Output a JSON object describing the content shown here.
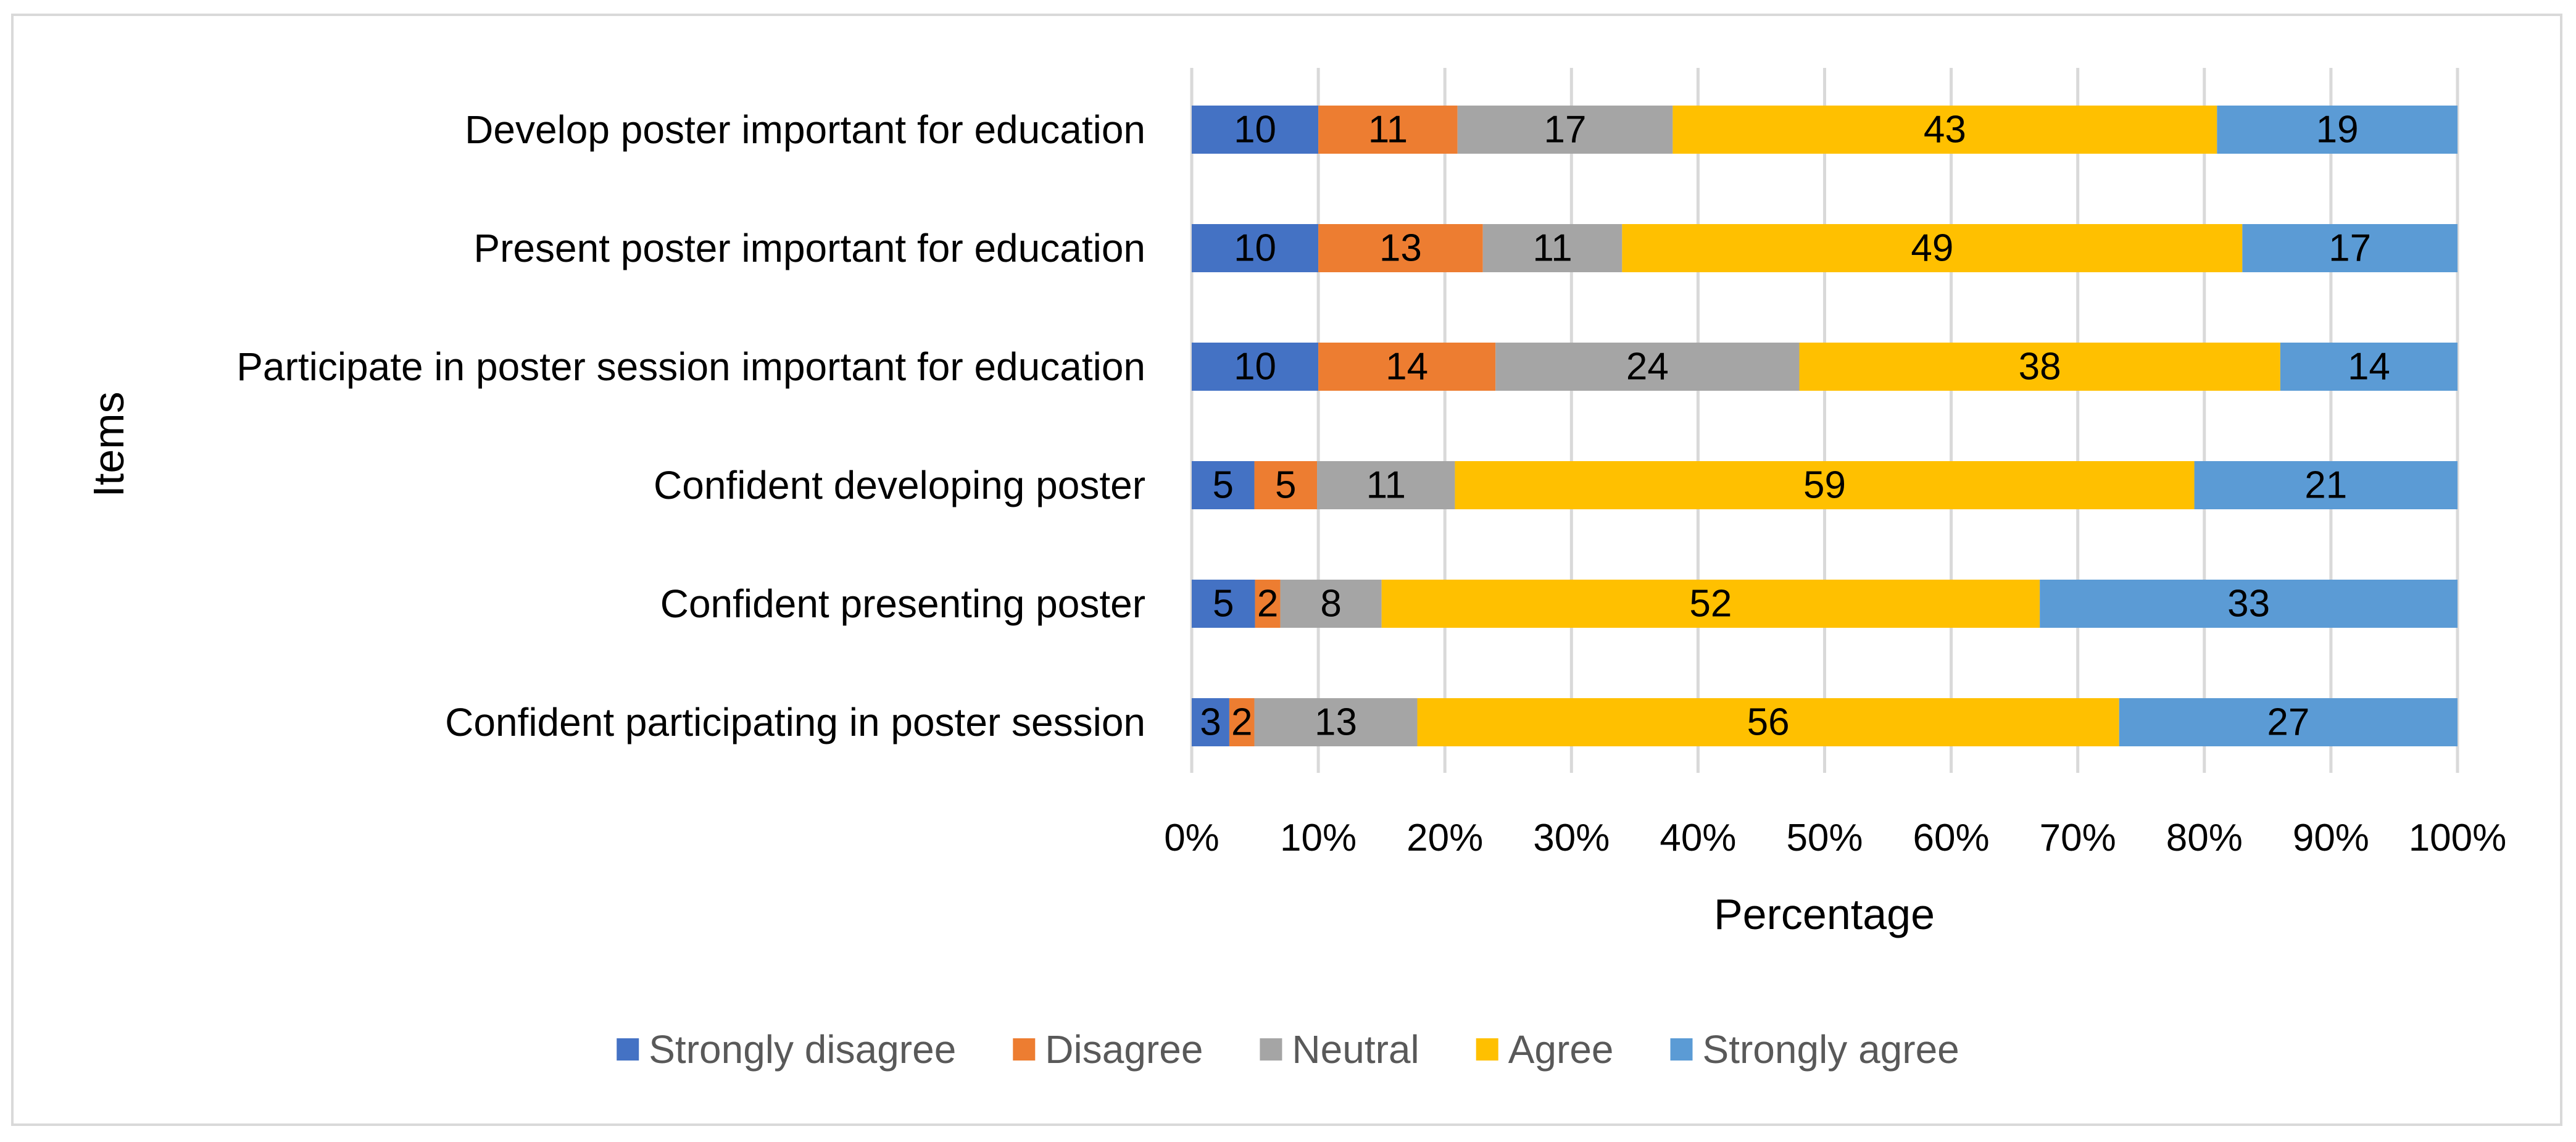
{
  "chart_data": {
    "type": "bar",
    "orientation": "horizontal",
    "stacking": "percent",
    "title": "",
    "xlabel": "Percentage",
    "ylabel": "Items",
    "xlim": [
      0,
      100
    ],
    "x_ticks": [
      "0%",
      "10%",
      "20%",
      "30%",
      "40%",
      "50%",
      "60%",
      "70%",
      "80%",
      "90%",
      "100%"
    ],
    "grid": true,
    "legend_position": "bottom",
    "categories": [
      "Develop poster important for education",
      "Present poster important for education",
      "Participate in poster session important for education",
      "Confident developing poster",
      "Confident presenting poster",
      "Confident participating in poster session"
    ],
    "series": [
      {
        "name": "Strongly disagree",
        "color": "#4472c4",
        "values": [
          10,
          10,
          10,
          5,
          5,
          3
        ]
      },
      {
        "name": "Disagree",
        "color": "#ed7d31",
        "values": [
          11,
          13,
          14,
          5,
          2,
          2
        ]
      },
      {
        "name": "Neutral",
        "color": "#a5a5a5",
        "values": [
          17,
          11,
          24,
          11,
          8,
          13
        ]
      },
      {
        "name": "Agree",
        "color": "#ffc000",
        "values": [
          43,
          49,
          38,
          59,
          52,
          56
        ]
      },
      {
        "name": "Strongly agree",
        "color": "#5b9bd5",
        "values": [
          19,
          17,
          14,
          21,
          33,
          27
        ]
      }
    ]
  }
}
